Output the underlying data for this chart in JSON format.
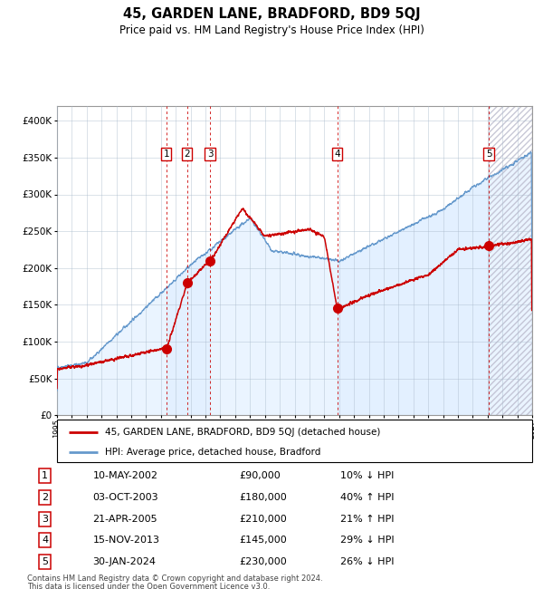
{
  "title": "45, GARDEN LANE, BRADFORD, BD9 5QJ",
  "subtitle": "Price paid vs. HM Land Registry's House Price Index (HPI)",
  "legend_line1": "45, GARDEN LANE, BRADFORD, BD9 5QJ (detached house)",
  "legend_line2": "HPI: Average price, detached house, Bradford",
  "footer1": "Contains HM Land Registry data © Crown copyright and database right 2024.",
  "footer2": "This data is licensed under the Open Government Licence v3.0.",
  "transactions": [
    {
      "num": 1,
      "date": "10-MAY-2002",
      "price": 90000,
      "pct": "10%",
      "dir": "↓",
      "year": 2002.36
    },
    {
      "num": 2,
      "date": "03-OCT-2003",
      "price": 180000,
      "pct": "40%",
      "dir": "↑",
      "year": 2003.75
    },
    {
      "num": 3,
      "date": "21-APR-2005",
      "price": 210000,
      "pct": "21%",
      "dir": "↑",
      "year": 2005.3
    },
    {
      "num": 4,
      "date": "15-NOV-2013",
      "price": 145000,
      "pct": "29%",
      "dir": "↓",
      "year": 2013.87
    },
    {
      "num": 5,
      "date": "30-JAN-2024",
      "price": 230000,
      "pct": "26%",
      "dir": "↓",
      "year": 2024.08
    }
  ],
  "red_color": "#cc0000",
  "blue_color": "#6699cc",
  "blue_fill": "#ddeeff",
  "hatch_color": "#bbbbcc",
  "grid_color": "#aabbcc",
  "xmin": 1995,
  "xmax": 2027,
  "ymin": 0,
  "ymax": 420000,
  "yticks": [
    0,
    50000,
    100000,
    150000,
    200000,
    250000,
    300000,
    350000,
    400000
  ]
}
